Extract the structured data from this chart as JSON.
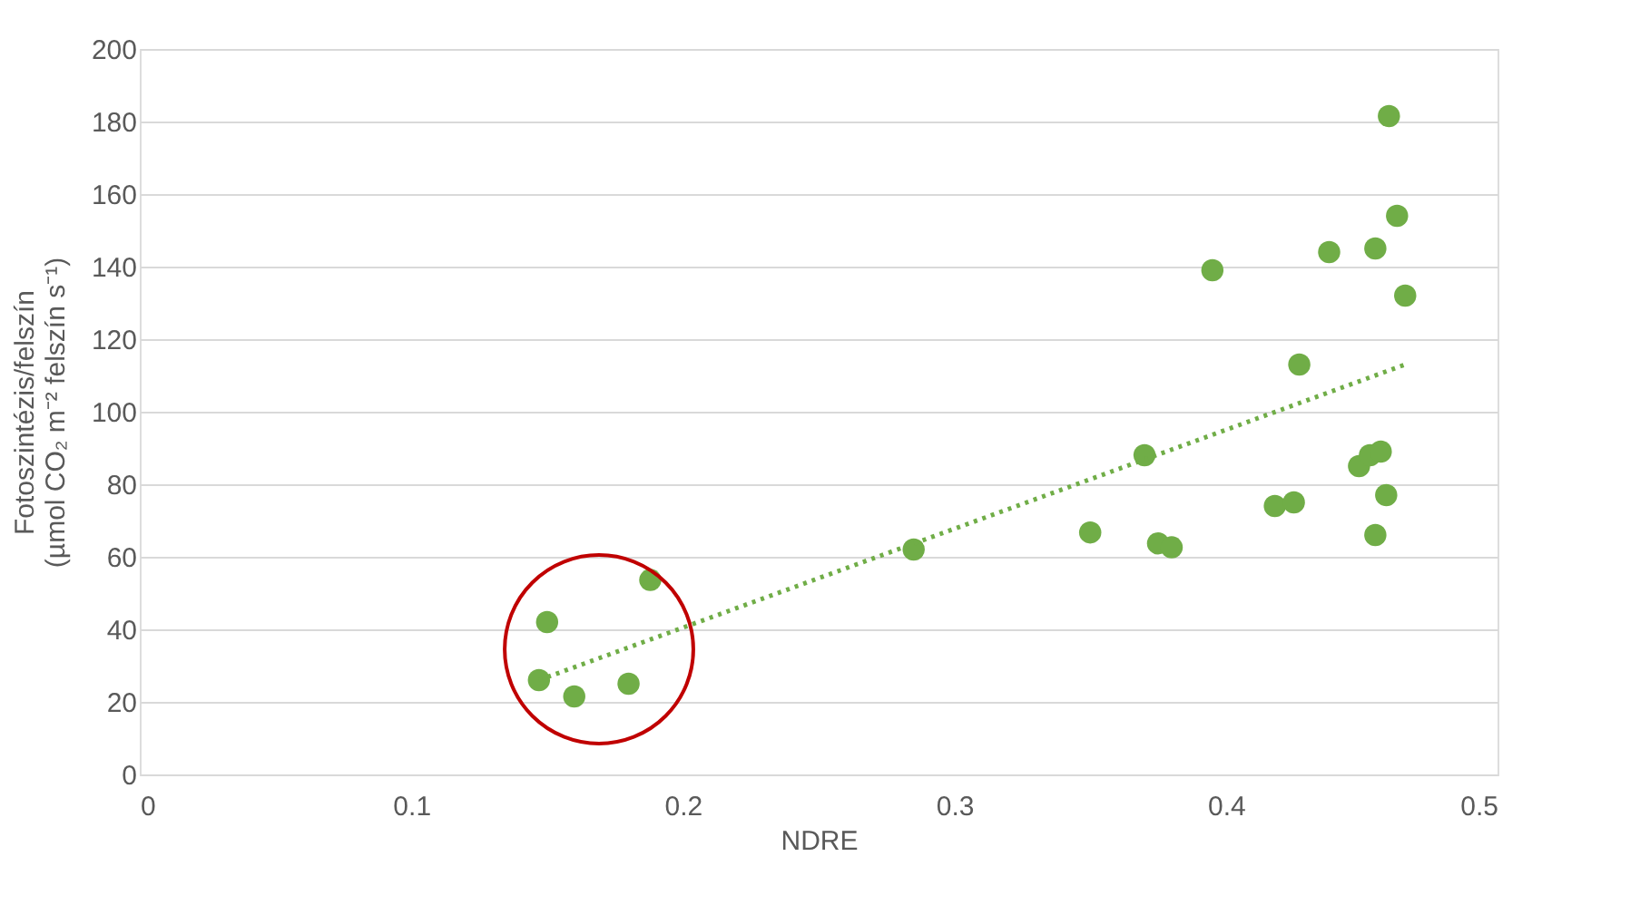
{
  "chart_data": {
    "type": "scatter",
    "xlabel": "NDRE",
    "ylabel": "Fotoszintézis/felszín (µmol CO₂ m⁻² felszín s⁻¹)",
    "xlim": [
      0,
      0.5
    ],
    "xticks": [
      0,
      0.1,
      0.2,
      0.3,
      0.4,
      0.5
    ],
    "ylim": [
      0,
      200
    ],
    "yticks": [
      0,
      20,
      40,
      60,
      80,
      100,
      120,
      140,
      160,
      180,
      200
    ],
    "grid": "y",
    "series": [
      {
        "marker": "circle",
        "color": "#70ad47",
        "x": [
          0.147,
          0.15,
          0.16,
          0.18,
          0.188,
          0.285,
          0.35,
          0.37,
          0.375,
          0.38,
          0.395,
          0.418,
          0.425,
          0.427,
          0.438,
          0.449,
          0.453,
          0.457,
          0.455,
          0.455,
          0.459,
          0.46,
          0.463,
          0.466
        ],
        "values": [
          26,
          42,
          21.5,
          25,
          53.6,
          62,
          66.7,
          88,
          63.7,
          62.6,
          139,
          74,
          75,
          113,
          144,
          85,
          88,
          89,
          145,
          66,
          77,
          181.5,
          154,
          132
        ]
      },
      {
        "type": "line",
        "color": "#70ad47",
        "line_style": "dotted",
        "x": [
          0.147,
          0.466
        ],
        "values": [
          26,
          113
        ]
      }
    ]
  }
}
